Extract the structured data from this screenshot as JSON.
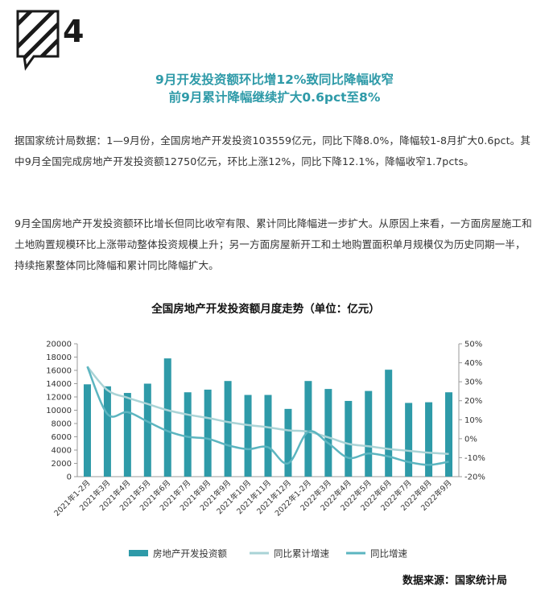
{
  "logo": {
    "number": "4"
  },
  "headline": {
    "line1": "9月开发投资额环比增12%致同比降幅收窄",
    "line2": "前9月累计降幅继续扩大0.6pct至8%"
  },
  "paragraphs": [
    "据国家统计局数据：1—9月份，全国房地产开发投资103559亿元，同比下降8.0%，降幅较1-8月扩大0.6pct。其中9月全国完成房地产开发投资额12750亿元，环比上涨12%，同比下降12.1%，降幅收窄1.7pcts。",
    "9月全国房地产开发投资额环比增长但同比收窄有限、累计同比降幅进一步扩大。从原因上来看，一方面房屋施工和土地购置规模环比上涨带动整体投资规模上升；另一方面房屋新开工和土地购置面积单月规模仅为历史同期一半，持续拖累整体同比降幅和累计同比降幅扩大。"
  ],
  "source": "数据来源：国家统计局",
  "colors": {
    "accent": "#2e9aa8",
    "bar": "#2e9aa8",
    "cum_line": "#a9d3d6",
    "yoy_line": "#5cb5c0"
  },
  "chart_data": {
    "type": "bar",
    "title": "全国房地产开发投资额月度走势（单位：亿元）",
    "categories": [
      "2021年1-2月",
      "2021年3月",
      "2021年4月",
      "2021年5月",
      "2021年6月",
      "2021年7月",
      "2021年8月",
      "2021年9月",
      "2021年10月",
      "2021年11月",
      "2021年12月",
      "2022年1-2月",
      "2022年3月",
      "2022年4月",
      "2022年5月",
      "2022年6月",
      "2022年7月",
      "2022年8月",
      "2022年9月"
    ],
    "series": [
      {
        "name": "房地产开发投资额",
        "kind": "bar",
        "axis": "left",
        "values": [
          13900,
          13600,
          12600,
          14000,
          17800,
          12700,
          13100,
          14400,
          12300,
          12300,
          10200,
          14400,
          13200,
          11400,
          12900,
          16100,
          11100,
          11200,
          12700
        ]
      },
      {
        "name": "同比累计增速",
        "kind": "line",
        "axis": "right",
        "values": [
          38,
          25.6,
          21.6,
          18.3,
          15.0,
          12.7,
          10.9,
          8.8,
          7.2,
          6.0,
          4.4,
          3.7,
          0.7,
          -2.7,
          -4.0,
          -5.4,
          -6.4,
          -7.4,
          -8.0
        ]
      },
      {
        "name": "同比增速",
        "kind": "line",
        "axis": "right",
        "values": [
          38,
          13,
          14,
          9,
          4,
          1,
          0,
          -3.5,
          -5.5,
          -4.5,
          -13,
          3.7,
          -2.4,
          -10.1,
          -7.8,
          -9.4,
          -12.3,
          -13.8,
          -12.1
        ]
      }
    ],
    "y_left": {
      "min": 0,
      "max": 20000,
      "ticks": [
        "0",
        "2000",
        "4000",
        "6000",
        "8000",
        "10000",
        "12000",
        "14000",
        "16000",
        "18000",
        "20000"
      ]
    },
    "y_right": {
      "min": -20,
      "max": 50,
      "ticks": [
        "-20%",
        "-10%",
        "0%",
        "10%",
        "20%",
        "30%",
        "40%",
        "50%"
      ]
    },
    "legend_position": "bottom",
    "grid": false
  }
}
